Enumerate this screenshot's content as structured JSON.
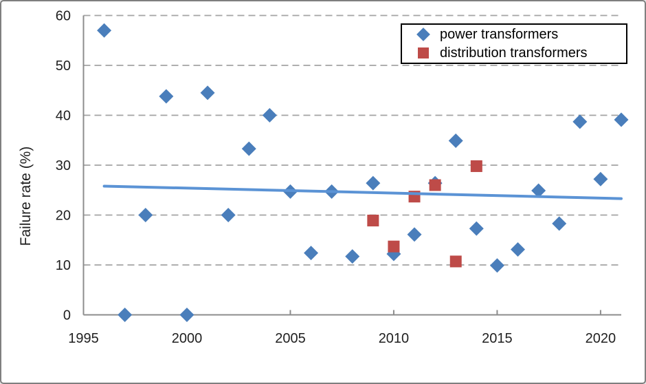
{
  "window": {
    "background": "#ffffff",
    "border_color": "#7f7f7f"
  },
  "chart_data": {
    "type": "scatter",
    "title": "",
    "xlabel": "",
    "ylabel": "Failure rate (%)",
    "xlim": [
      1995,
      2021
    ],
    "ylim": [
      0,
      60
    ],
    "x_ticks": [
      1995,
      2000,
      2005,
      2010,
      2015,
      2020
    ],
    "y_ticks": [
      0,
      10,
      20,
      30,
      40,
      50,
      60
    ],
    "grid": {
      "horizontal_dashed": true,
      "color": "#a3a3a3"
    },
    "axis_color": "#8c8c8c",
    "text_color": "#1f1f1f",
    "legend_position": "top-right",
    "series": [
      {
        "name": "power transformers",
        "marker": "diamond",
        "color": "#4a7ebb",
        "points": [
          [
            1996,
            57.0
          ],
          [
            1997,
            0.0
          ],
          [
            1998,
            20.0
          ],
          [
            1999,
            43.8
          ],
          [
            2000,
            0.0
          ],
          [
            2001,
            44.5
          ],
          [
            2002,
            20.0
          ],
          [
            2003,
            33.3
          ],
          [
            2004,
            40.0
          ],
          [
            2005,
            24.7
          ],
          [
            2006,
            12.4
          ],
          [
            2007,
            24.7
          ],
          [
            2008,
            11.7
          ],
          [
            2009,
            26.4
          ],
          [
            2010,
            12.2
          ],
          [
            2011,
            16.1
          ],
          [
            2012,
            26.4
          ],
          [
            2013,
            34.9
          ],
          [
            2014,
            17.3
          ],
          [
            2015,
            9.9
          ],
          [
            2016,
            13.1
          ],
          [
            2017,
            24.9
          ],
          [
            2018,
            18.3
          ],
          [
            2019,
            38.7
          ],
          [
            2020,
            27.2
          ],
          [
            2021,
            39.1
          ]
        ]
      },
      {
        "name": "distribution transformers",
        "marker": "square",
        "color": "#be4b48",
        "points": [
          [
            2009,
            18.9
          ],
          [
            2010,
            13.7
          ],
          [
            2011,
            23.7
          ],
          [
            2012,
            26.0
          ],
          [
            2013,
            10.7
          ],
          [
            2014,
            29.8
          ]
        ]
      }
    ],
    "trendline": {
      "color": "#5b93d5",
      "width": 4,
      "x": [
        1996,
        2021
      ],
      "y": [
        25.8,
        23.3
      ]
    }
  }
}
